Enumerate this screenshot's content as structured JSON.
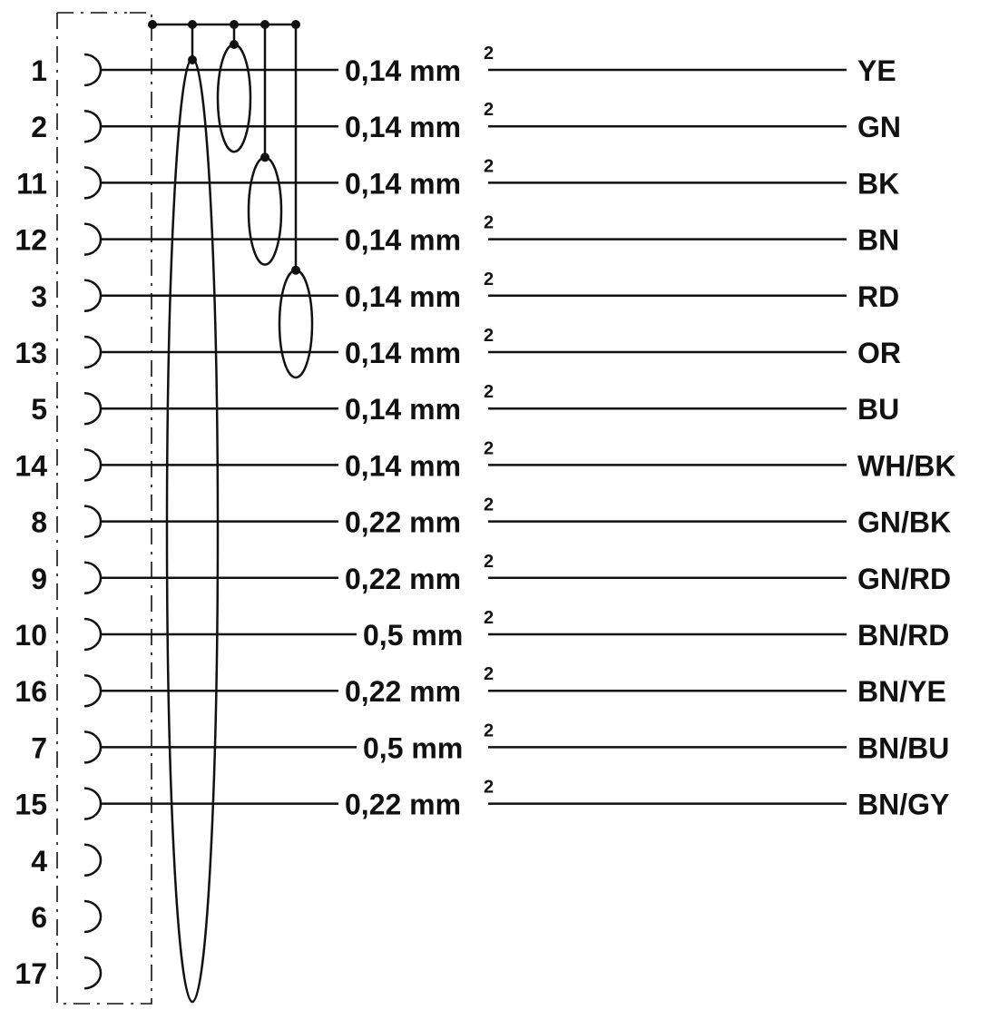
{
  "rows": [
    {
      "pin": "1",
      "spec": "0,14 mm",
      "sup": "2",
      "color": "YE"
    },
    {
      "pin": "2",
      "spec": "0,14 mm",
      "sup": "2",
      "color": "GN"
    },
    {
      "pin": "11",
      "spec": "0,14 mm",
      "sup": "2",
      "color": "BK"
    },
    {
      "pin": "12",
      "spec": "0,14 mm",
      "sup": "2",
      "color": "BN"
    },
    {
      "pin": "3",
      "spec": "0,14 mm",
      "sup": "2",
      "color": "RD"
    },
    {
      "pin": "13",
      "spec": "0,14 mm",
      "sup": "2",
      "color": "OR"
    },
    {
      "pin": "5",
      "spec": "0,14 mm",
      "sup": "2",
      "color": "BU"
    },
    {
      "pin": "14",
      "spec": "0,14 mm",
      "sup": "2",
      "color": "WH/BK"
    },
    {
      "pin": "8",
      "spec": "0,22 mm",
      "sup": "2",
      "color": "GN/BK"
    },
    {
      "pin": "9",
      "spec": "0,22 mm",
      "sup": "2",
      "color": "GN/RD"
    },
    {
      "pin": "10",
      "spec": "0,5 mm",
      "sup": "2",
      "color": "BN/RD"
    },
    {
      "pin": "16",
      "spec": "0,22 mm",
      "sup": "2",
      "color": "BN/YE"
    },
    {
      "pin": "7",
      "spec": "0,5 mm",
      "sup": "2",
      "color": "BN/BU"
    },
    {
      "pin": "15",
      "spec": "0,22 mm",
      "sup": "2",
      "color": "BN/GY"
    },
    {
      "pin": "4"
    },
    {
      "pin": "6"
    },
    {
      "pin": "17"
    }
  ],
  "colors": {
    "line": "#111111",
    "background": "#ffffff"
  },
  "shield_pairs": [
    [
      "1",
      "2"
    ],
    [
      "11",
      "12"
    ],
    [
      "3",
      "13"
    ]
  ]
}
